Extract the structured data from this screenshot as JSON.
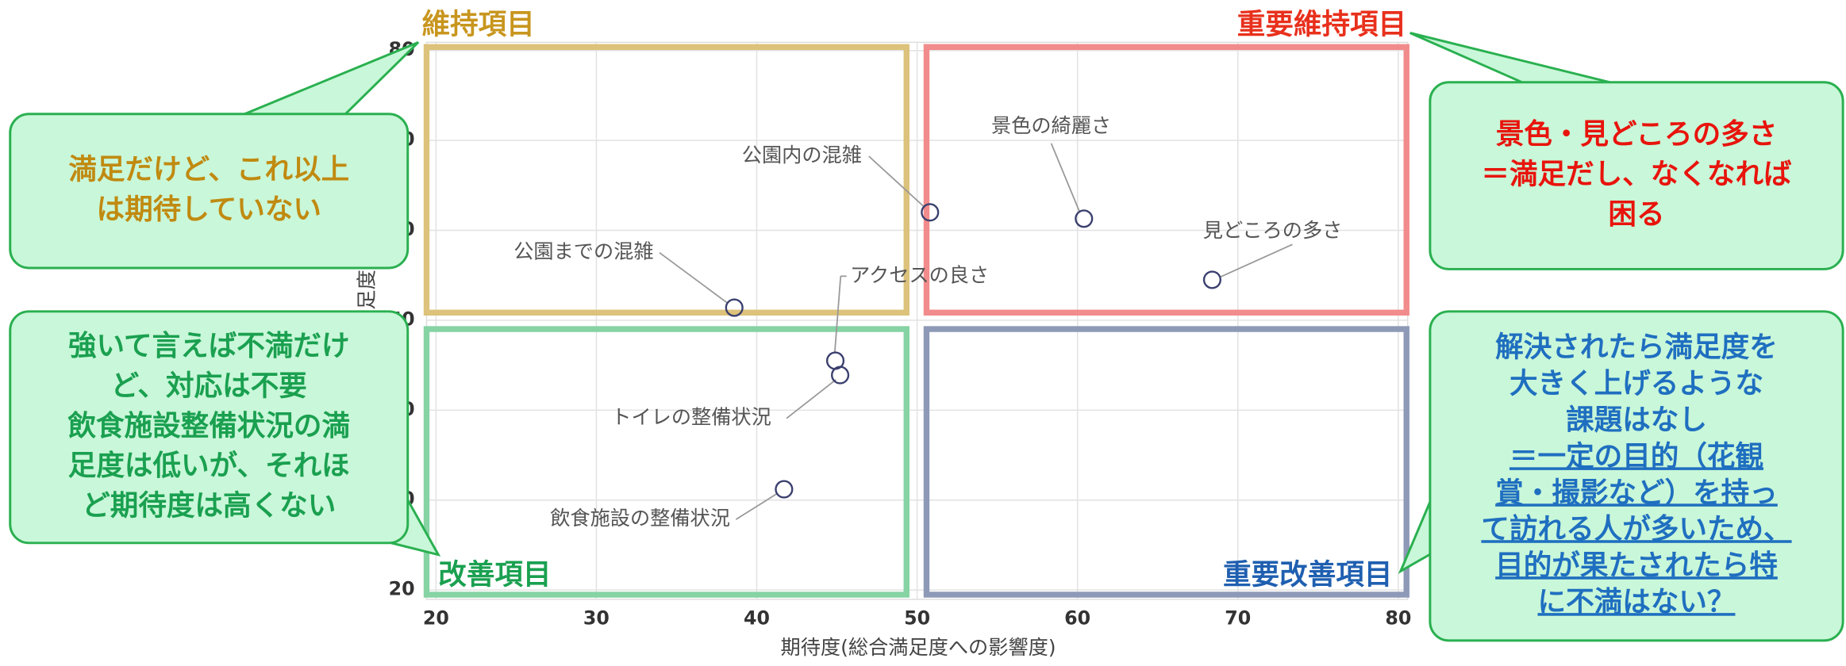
{
  "chart_data": {
    "type": "scatter",
    "xlabel": "期待度(総合満足度への影響度)",
    "ylabel": "満足度",
    "x": [
      50.8,
      60.4,
      68.4,
      38.6,
      44.9,
      45.2,
      41.7
    ],
    "values": [
      62.0,
      61.3,
      54.5,
      51.4,
      45.5,
      43.9,
      31.2
    ],
    "point_labels": [
      "公園内の混雑",
      "景色の綺麗さ",
      "見どころの多さ",
      "公園までの混雑",
      "アクセスの良さ",
      "トイレの整備状況",
      "飲食施設の整備状況"
    ],
    "color": "#3a3f6e",
    "xlim": [
      20,
      80
    ],
    "ylim": [
      20,
      80
    ],
    "xticks": [
      20,
      30,
      40,
      50,
      60,
      70,
      80
    ],
    "yticks": [
      20,
      30,
      40,
      50,
      60,
      70,
      80
    ],
    "grid": true,
    "quadrants": [
      {
        "label": "維持項目",
        "color": "#c8961e",
        "border": "#dcc27a"
      },
      {
        "label": "重要維持項目",
        "color": "#e8301c",
        "border": "#f28b8b"
      },
      {
        "label": "改善項目",
        "color": "#1aa050",
        "border": "#86d3a3"
      },
      {
        "label": "重要改善項目",
        "color": "#1f5fb0",
        "border": "#8d99b6"
      }
    ],
    "callouts": [
      {
        "color": "#c08a10",
        "lines": [
          "満足だけど、これ以上",
          "は期待していない"
        ]
      },
      {
        "color": "#e8140c",
        "lines": [
          "景色・見どころの多さ",
          "＝満足だし、なくなれば",
          "困る"
        ]
      },
      {
        "color": "#1aa050",
        "lines": [
          "強いて言えば不満だけ",
          "ど、対応は不要",
          "飲食施設整備状況の満",
          "足度は低いが、それほ",
          "ど期待度は高くない"
        ]
      },
      {
        "color": "#1f6fc0",
        "lines": [
          "解決されたら満足度を",
          "大きく上げるような",
          "課題はなし"
        ],
        "underlined_lines": [
          "＝一定の目的（花観",
          "賞・撮影など）を持っ",
          "て訪れる人が多いため、",
          "目的が果たされたら特",
          "に不満はない？"
        ]
      }
    ]
  }
}
